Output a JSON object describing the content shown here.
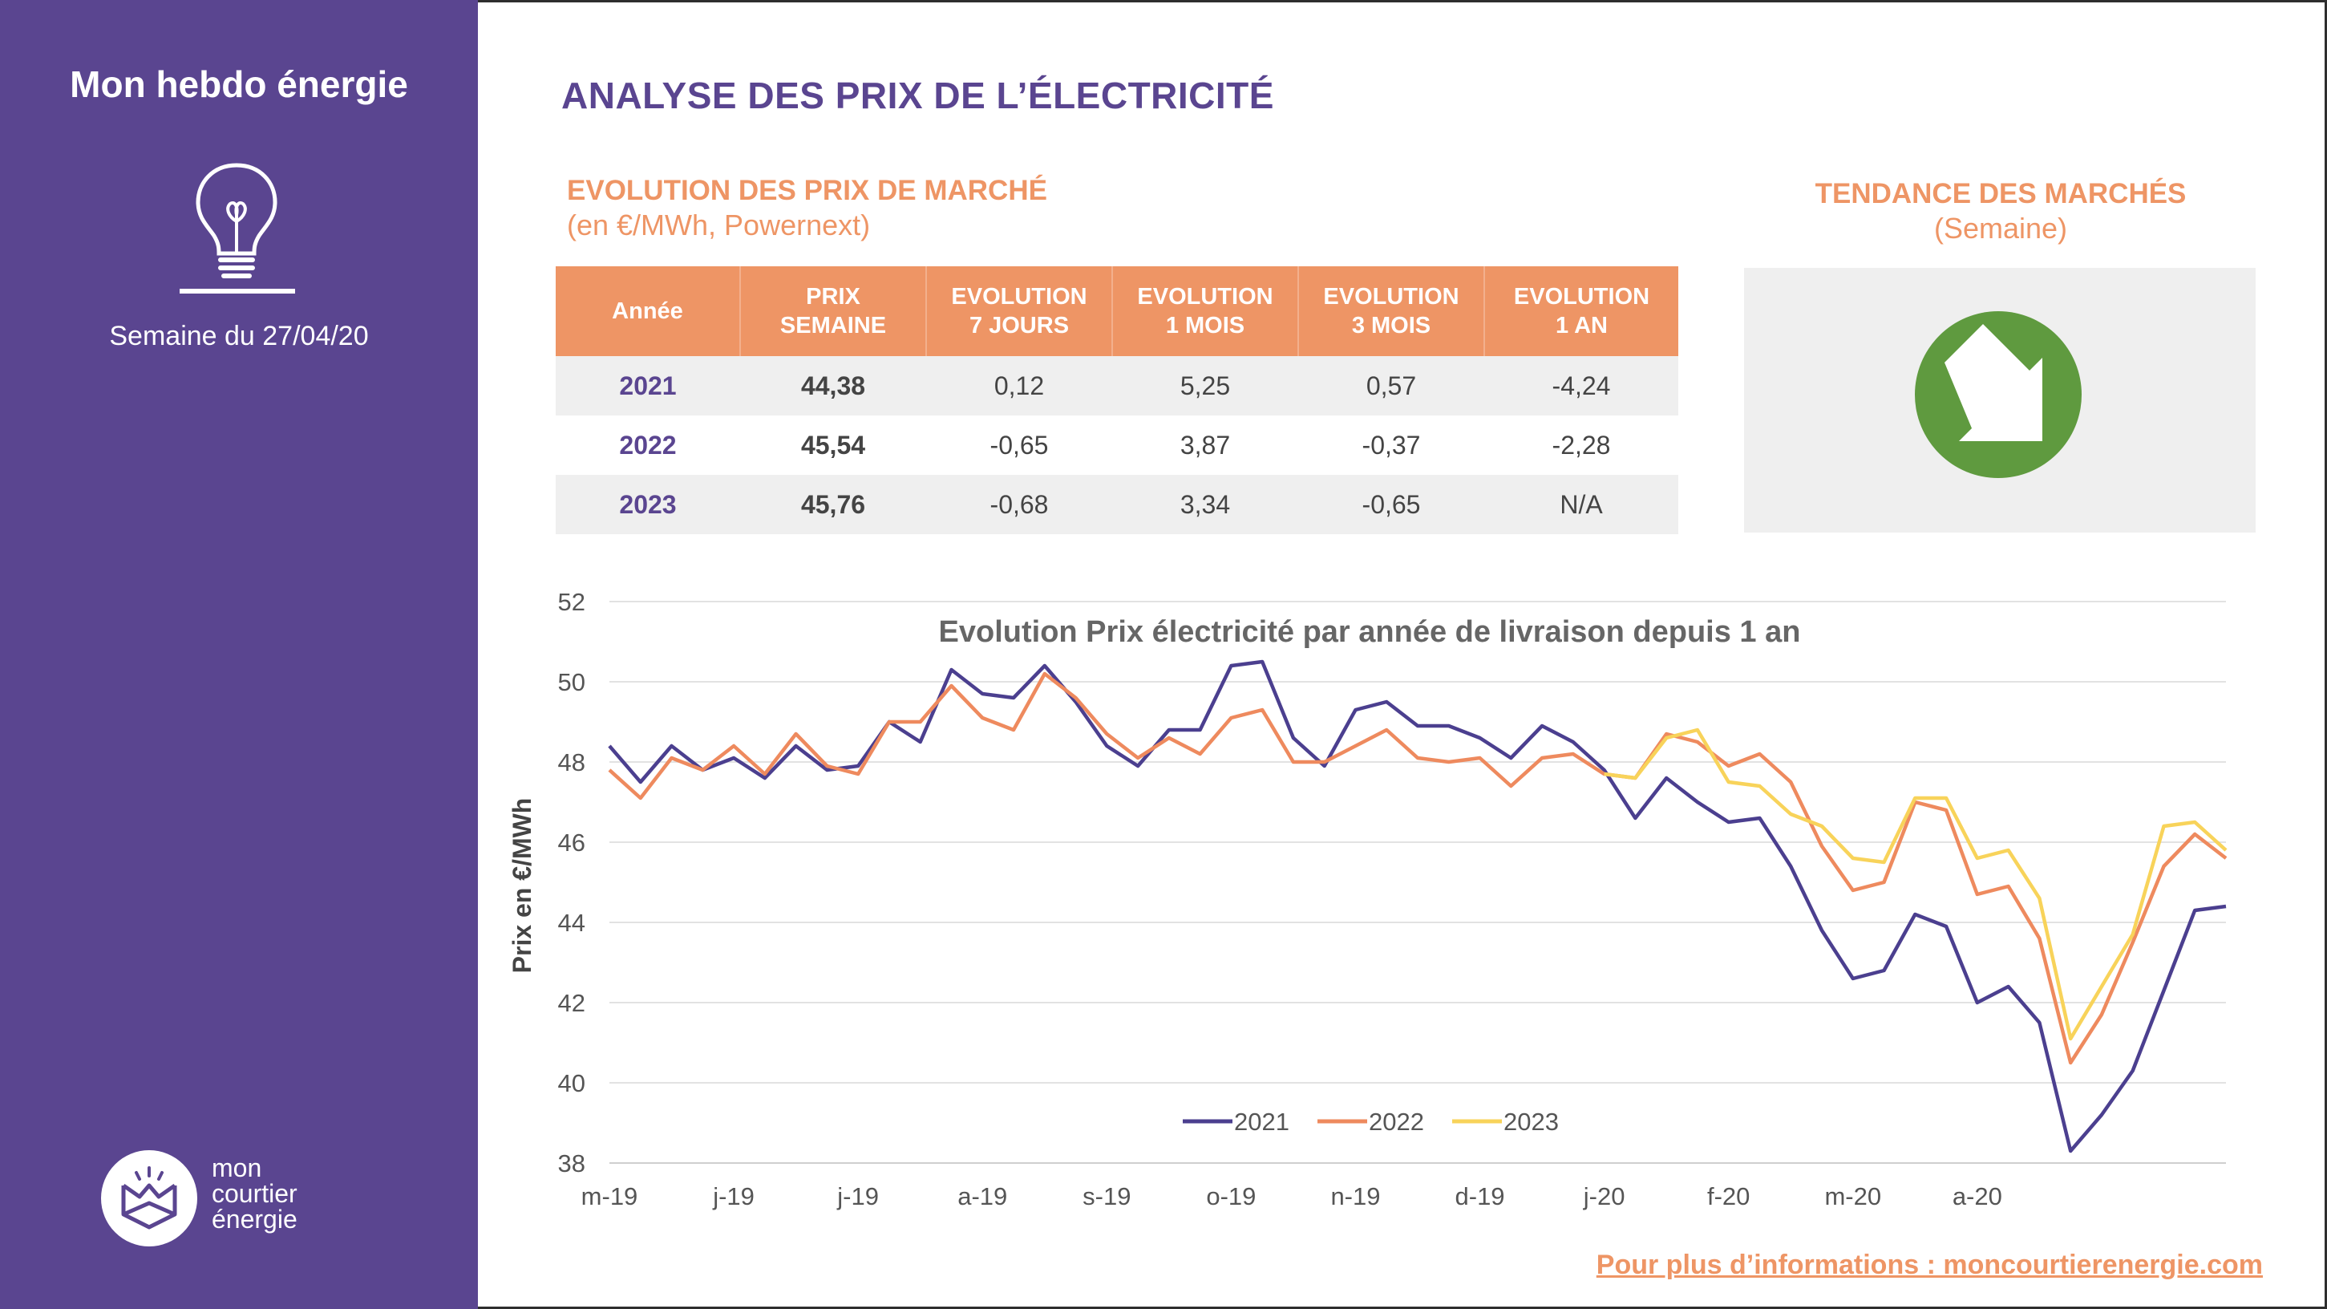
{
  "sidebar": {
    "title": "Mon hebdo énergie",
    "week": "Semaine du 27/04/20",
    "logo_lines": [
      "mon",
      "courtier",
      "énergie"
    ],
    "icon": "lightbulb-icon",
    "background": "#5a4590"
  },
  "header": {
    "title": "ANALYSE DES PRIX DE L’ÉLECTRICITÉ"
  },
  "market": {
    "title": "EVOLUTION DES PRIX DE MARCHÉ",
    "subtitle": "(en €/MWh, Powernext)",
    "columns": [
      [
        "Année"
      ],
      [
        "PRIX",
        "SEMAINE"
      ],
      [
        "EVOLUTION",
        "7 JOURS"
      ],
      [
        "EVOLUTION",
        "1 MOIS"
      ],
      [
        "EVOLUTION",
        "3 MOIS"
      ],
      [
        "EVOLUTION",
        "1 AN"
      ]
    ],
    "rows": [
      {
        "year": "2021",
        "price": "44,38",
        "d7": "0,12",
        "m1": "5,25",
        "m3": "0,57",
        "y1": "-4,24"
      },
      {
        "year": "2022",
        "price": "45,54",
        "d7": "-0,65",
        "m1": "3,87",
        "m3": "-0,37",
        "y1": "-2,28"
      },
      {
        "year": "2023",
        "price": "45,76",
        "d7": "-0,68",
        "m1": "3,34",
        "m3": "-0,65",
        "y1": "N/A"
      }
    ]
  },
  "trend": {
    "title": "TENDANCE DES MARCHÉS",
    "subtitle": "(Semaine)",
    "icon": "arrow-down-right-icon",
    "color": "#5f9a3f"
  },
  "chart_data": {
    "type": "line",
    "title": "Evolution Prix électricité par année de livraison depuis 1 an",
    "ylabel": "Prix en €/MWh",
    "xlabel": "",
    "ylim": [
      38,
      52
    ],
    "yticks": [
      38,
      40,
      42,
      44,
      46,
      48,
      50,
      52
    ],
    "xticks": [
      "m-19",
      "j-19",
      "j-19",
      "a-19",
      "s-19",
      "o-19",
      "n-19",
      "d-19",
      "j-20",
      "f-20",
      "m-20",
      "a-20"
    ],
    "xtick_index": [
      0,
      4,
      8,
      12,
      16,
      20,
      24,
      28,
      32,
      36,
      40,
      44
    ],
    "grid": true,
    "legend_position": "bottom-center",
    "series": [
      {
        "name": "2021",
        "color": "#4b3f8f",
        "values": [
          48.4,
          47.5,
          48.4,
          47.8,
          48.1,
          47.6,
          48.4,
          47.8,
          47.9,
          49.0,
          48.5,
          50.3,
          49.7,
          49.6,
          50.4,
          49.5,
          48.4,
          47.9,
          48.8,
          48.8,
          50.4,
          50.5,
          48.6,
          47.9,
          49.3,
          49.5,
          48.9,
          48.9,
          48.6,
          48.1,
          48.9,
          48.5,
          47.8,
          46.6,
          47.6,
          47.0,
          46.5,
          46.6,
          45.4,
          43.8,
          42.6,
          42.8,
          44.2,
          43.9,
          42.0,
          42.4,
          41.5,
          38.3,
          39.2,
          40.3,
          42.3,
          44.3,
          44.4
        ]
      },
      {
        "name": "2022",
        "color": "#ee8a5e",
        "values": [
          47.8,
          47.1,
          48.1,
          47.8,
          48.4,
          47.7,
          48.7,
          47.9,
          47.7,
          49.0,
          49.0,
          49.9,
          49.1,
          48.8,
          50.2,
          49.6,
          48.7,
          48.1,
          48.6,
          48.2,
          49.1,
          49.3,
          48.0,
          48.0,
          48.4,
          48.8,
          48.1,
          48.0,
          48.1,
          47.4,
          48.1,
          48.2,
          47.7,
          47.6,
          48.7,
          48.5,
          47.9,
          48.2,
          47.5,
          45.9,
          44.8,
          45.0,
          47.0,
          46.8,
          44.7,
          44.9,
          43.6,
          40.5,
          41.7,
          43.5,
          45.4,
          46.2,
          45.6
        ]
      },
      {
        "name": "2023",
        "color": "#f8d35a",
        "values": [
          null,
          null,
          null,
          null,
          null,
          null,
          null,
          null,
          null,
          null,
          null,
          null,
          null,
          null,
          null,
          null,
          null,
          null,
          null,
          null,
          null,
          null,
          null,
          null,
          null,
          null,
          null,
          null,
          null,
          null,
          null,
          null,
          47.7,
          47.6,
          48.6,
          48.8,
          47.5,
          47.4,
          46.7,
          46.4,
          45.6,
          45.5,
          47.1,
          47.1,
          45.6,
          45.8,
          44.6,
          41.1,
          42.4,
          43.7,
          46.4,
          46.5,
          45.8
        ]
      }
    ]
  },
  "footer": {
    "link": "Pour plus d’informations : moncourtierenergie.com"
  }
}
